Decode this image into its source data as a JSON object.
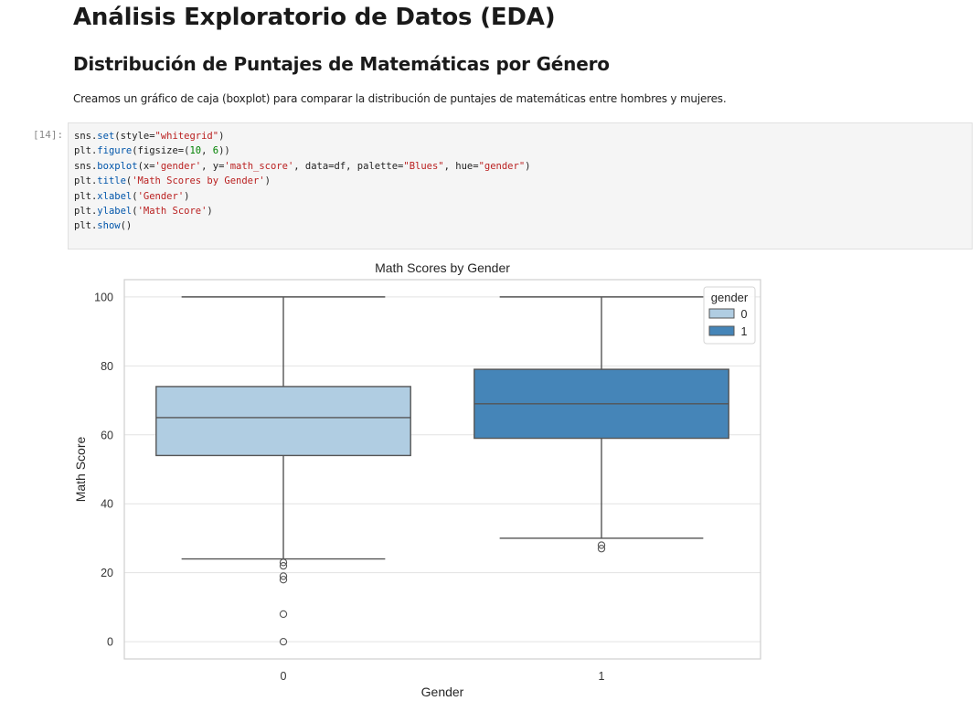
{
  "page": {
    "title": "Análisis Exploratorio de Datos (EDA)",
    "subtitle": "Distribución de Puntajes de Matemáticas por Género",
    "description": "Creamos un gráfico de caja (boxplot) para comparar la distribución de puntajes de matemáticas entre hombres y mujeres."
  },
  "cell": {
    "prompt": "[14]:",
    "lines": [
      "sns.set(style=\"whitegrid\")",
      "plt.figure(figsize=(10, 6))",
      "sns.boxplot(x='gender', y='math_score', data=df, palette=\"Blues\", hue=\"gender\")",
      "plt.title('Math Scores by Gender')",
      "plt.xlabel('Gender')",
      "plt.ylabel('Math Score')",
      "plt.show()"
    ]
  },
  "chart_data": {
    "type": "box",
    "title": "Math Scores by Gender",
    "xlabel": "Gender",
    "ylabel": "Math Score",
    "categories": [
      "0",
      "1"
    ],
    "ylim": [
      -5,
      105
    ],
    "yticks": [
      0,
      20,
      40,
      60,
      80,
      100
    ],
    "grid": true,
    "legend": {
      "title": "gender",
      "placement": "top-right",
      "entries": [
        "0",
        "1"
      ]
    },
    "colors": {
      "0": "#b0cde2",
      "1": "#4585b8",
      "edge": "#555555",
      "grid": "#e2e2e2"
    },
    "series": [
      {
        "category": "0",
        "whisker_low": 24,
        "q1": 54,
        "median": 65,
        "q3": 74,
        "whisker_high": 100,
        "outliers": [
          23,
          22,
          19,
          18,
          8,
          0
        ]
      },
      {
        "category": "1",
        "whisker_low": 30,
        "q1": 59,
        "median": 69,
        "q3": 79,
        "whisker_high": 100,
        "outliers": [
          28,
          27
        ]
      }
    ]
  }
}
